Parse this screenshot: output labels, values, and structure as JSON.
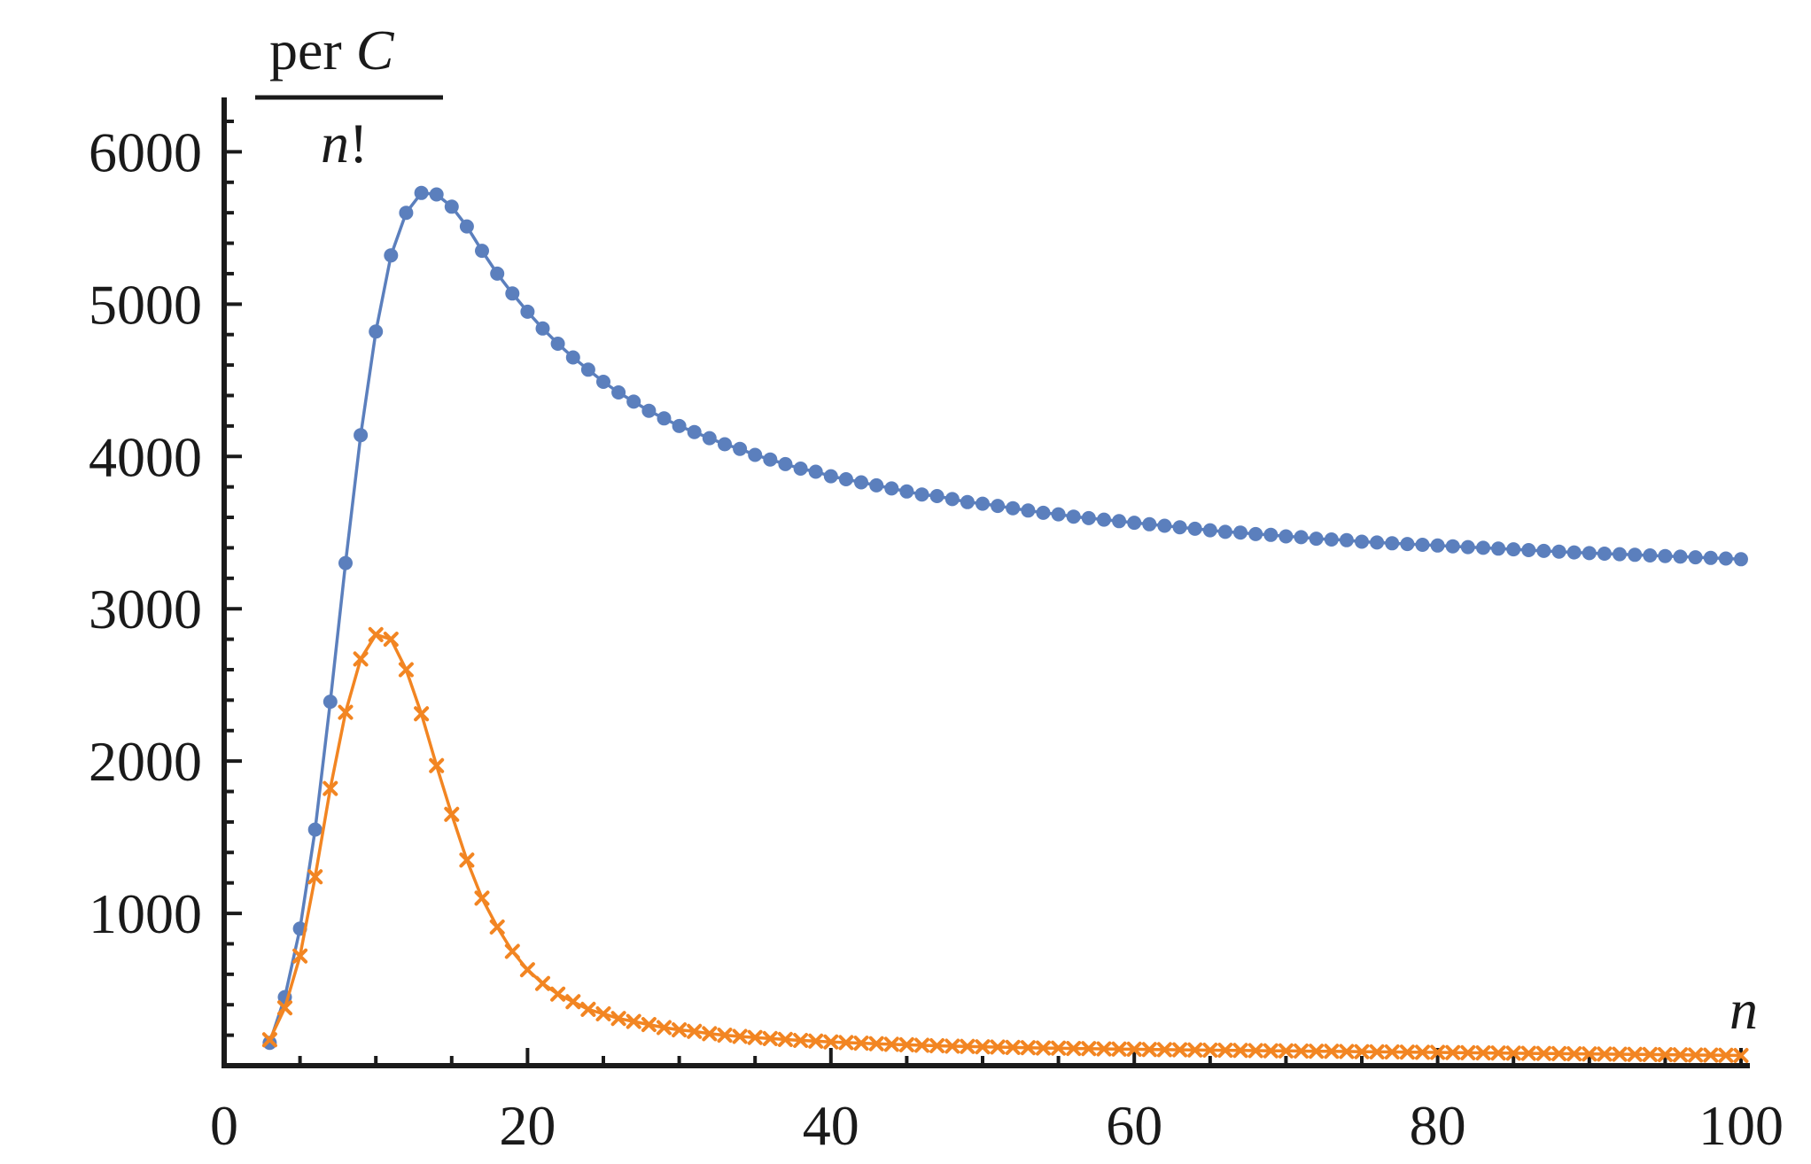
{
  "chart_data": {
    "type": "scatter",
    "title": "",
    "ylabel": {
      "numerator": "per",
      "numerator_italic": "C",
      "denominator_italic": "n",
      "denominator": "!"
    },
    "xlabel": "n",
    "xlim": [
      0,
      100
    ],
    "ylim": [
      0,
      6200
    ],
    "x_ticks": [
      0,
      20,
      40,
      60,
      80,
      100
    ],
    "y_ticks": [
      1000,
      2000,
      3000,
      4000,
      5000,
      6000
    ],
    "x_tick_labels": [
      "0",
      "20",
      "40",
      "60",
      "80",
      "100"
    ],
    "y_tick_labels": [
      "1000",
      "2000",
      "3000",
      "4000",
      "5000",
      "6000"
    ],
    "grid": false,
    "legend": "none",
    "series": [
      {
        "marker": "circle",
        "color": "#5b7fbd",
        "connected": true,
        "x": [
          3,
          4,
          5,
          6,
          7,
          8,
          9,
          10,
          11,
          12,
          13,
          14,
          15,
          16,
          17,
          18,
          19,
          20,
          21,
          22,
          23,
          24,
          25,
          26,
          27,
          28,
          29,
          30,
          31,
          32,
          33,
          34,
          35,
          36,
          37,
          38,
          39,
          40,
          41,
          42,
          43,
          44,
          45,
          46,
          47,
          48,
          49,
          50,
          51,
          52,
          53,
          54,
          55,
          56,
          57,
          58,
          59,
          60,
          61,
          62,
          63,
          64,
          65,
          66,
          67,
          68,
          69,
          70,
          71,
          72,
          73,
          74,
          75,
          76,
          77,
          78,
          79,
          80,
          81,
          82,
          83,
          84,
          85,
          86,
          87,
          88,
          89,
          90,
          91,
          92,
          93,
          94,
          95,
          96,
          97,
          98,
          99,
          100
        ],
        "y": [
          150,
          450,
          900,
          1550,
          2390,
          3300,
          4140,
          4820,
          5320,
          5600,
          5730,
          5720,
          5640,
          5510,
          5350,
          5200,
          5070,
          4950,
          4840,
          4740,
          4650,
          4570,
          4490,
          4420,
          4360,
          4300,
          4250,
          4200,
          4160,
          4120,
          4080,
          4050,
          4010,
          3980,
          3950,
          3920,
          3900,
          3870,
          3850,
          3830,
          3810,
          3790,
          3770,
          3750,
          3740,
          3720,
          3700,
          3690,
          3675,
          3660,
          3645,
          3630,
          3620,
          3605,
          3595,
          3585,
          3575,
          3565,
          3555,
          3545,
          3535,
          3525,
          3515,
          3505,
          3500,
          3490,
          3485,
          3475,
          3470,
          3460,
          3455,
          3450,
          3440,
          3435,
          3430,
          3425,
          3420,
          3415,
          3410,
          3405,
          3400,
          3395,
          3390,
          3385,
          3380,
          3375,
          3370,
          3365,
          3362,
          3358,
          3354,
          3350,
          3346,
          3342,
          3338,
          3334,
          3330,
          3325
        ]
      },
      {
        "marker": "cross",
        "color": "#f28522",
        "connected": true,
        "x": [
          3,
          4,
          5,
          6,
          7,
          8,
          9,
          10,
          11,
          12,
          13,
          14,
          15,
          16,
          17,
          18,
          19,
          20,
          21,
          22,
          23,
          24,
          25,
          26,
          27,
          28,
          29,
          30,
          31,
          32,
          33,
          34,
          35,
          36,
          37,
          38,
          39,
          40,
          41,
          42,
          43,
          44,
          45,
          46,
          47,
          48,
          49,
          50,
          51,
          52,
          53,
          54,
          55,
          56,
          57,
          58,
          59,
          60,
          61,
          62,
          63,
          64,
          65,
          66,
          67,
          68,
          69,
          70,
          71,
          72,
          73,
          74,
          75,
          76,
          77,
          78,
          79,
          80,
          81,
          82,
          83,
          84,
          85,
          86,
          87,
          88,
          89,
          90,
          91,
          92,
          93,
          94,
          95,
          96,
          97,
          98,
          99,
          100
        ],
        "y": [
          170,
          380,
          720,
          1240,
          1820,
          2320,
          2670,
          2830,
          2800,
          2600,
          2310,
          1970,
          1650,
          1350,
          1100,
          910,
          750,
          630,
          540,
          470,
          420,
          370,
          340,
          310,
          290,
          270,
          250,
          235,
          225,
          210,
          200,
          192,
          185,
          178,
          172,
          166,
          161,
          156,
          152,
          148,
          144,
          140,
          137,
          134,
          131,
          128,
          126,
          124,
          122,
          120,
          118,
          116,
          115,
          113,
          112,
          110,
          109,
          108,
          106,
          105,
          104,
          103,
          102,
          101,
          100,
          99,
          98,
          97,
          96,
          95,
          94,
          93,
          92,
          91,
          90,
          89,
          88,
          87,
          86,
          85,
          84,
          83,
          82,
          81,
          80,
          79,
          78,
          77,
          76,
          75,
          74,
          73,
          72,
          71,
          70,
          69,
          68,
          67
        ]
      }
    ]
  }
}
